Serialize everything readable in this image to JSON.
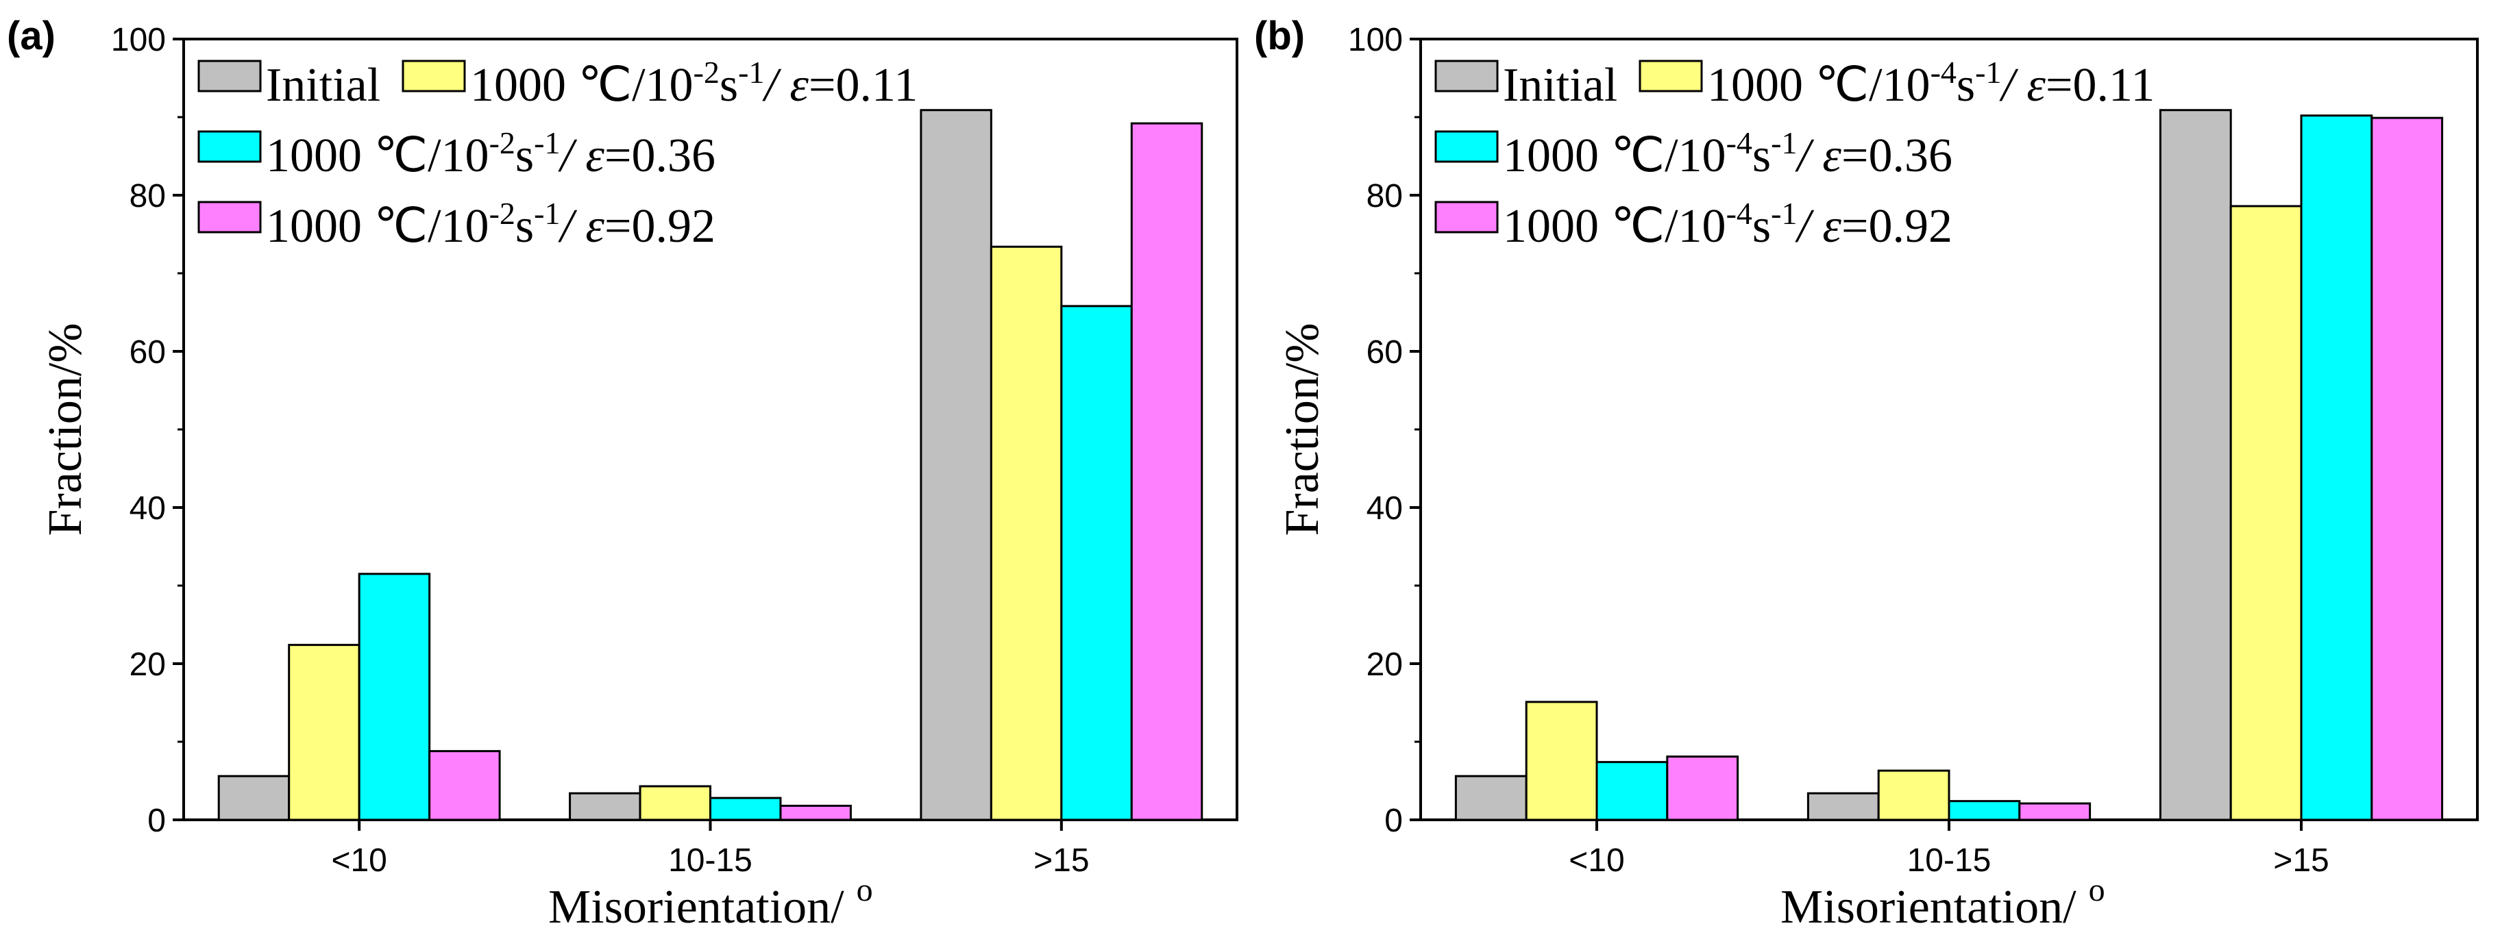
{
  "chart_data": [
    {
      "type": "bar",
      "panel_label": "(a)",
      "categories": [
        "<10",
        "10-15",
        ">15"
      ],
      "xlabel": "Misorientation/",
      "xlabel_unit": "o",
      "ylabel": "Fraction/%",
      "ylim": [
        0,
        100
      ],
      "yticks": [
        0,
        20,
        40,
        60,
        80,
        100
      ],
      "legend": "top-left",
      "series": [
        {
          "name": "Initial",
          "color": "#c0c0c0",
          "values": [
            5.6,
            3.4,
            90.9
          ],
          "legend_parts": {
            "pre": "Initial",
            "sup1": "",
            "mid": "",
            "sup2": "",
            "eps": "",
            "post": ""
          }
        },
        {
          "name": "1000 ℃/10-2s-1/ ε=0.11",
          "color": "#ffff80",
          "values": [
            22.4,
            4.3,
            73.4
          ],
          "legend_parts": {
            "pre": "1000 ℃/10",
            "sup1": "-2",
            "mid": "s",
            "sup2": "-1",
            "eps": "/ ε",
            "post": "=0.11"
          }
        },
        {
          "name": "1000 ℃/10-2s-1/ ε=0.36",
          "color": "#00ffff",
          "values": [
            31.5,
            2.8,
            65.8
          ],
          "legend_parts": {
            "pre": "1000 ℃/10",
            "sup1": "-2",
            "mid": "s",
            "sup2": "-1",
            "eps": "/ ε",
            "post": "=0.36"
          }
        },
        {
          "name": "1000 ℃/10-2s-1/ ε=0.92",
          "color": "#ff80ff",
          "values": [
            8.8,
            1.8,
            89.2
          ],
          "legend_parts": {
            "pre": "1000 ℃/10",
            "sup1": "-2",
            "mid": "s",
            "sup2": "-1",
            "eps": "/ ε",
            "post": "=0.92"
          }
        }
      ]
    },
    {
      "type": "bar",
      "panel_label": "(b)",
      "categories": [
        "<10",
        "10-15",
        ">15"
      ],
      "xlabel": "Misorientation/",
      "xlabel_unit": "o",
      "ylabel": "Fraction/%",
      "ylim": [
        0,
        100
      ],
      "yticks": [
        0,
        20,
        40,
        60,
        80,
        100
      ],
      "legend": "top-left",
      "series": [
        {
          "name": "Initial",
          "color": "#c0c0c0",
          "values": [
            5.6,
            3.4,
            90.9
          ],
          "legend_parts": {
            "pre": "Initial",
            "sup1": "",
            "mid": "",
            "sup2": "",
            "eps": "",
            "post": ""
          }
        },
        {
          "name": "1000 ℃/10-4s-1/ ε=0.11",
          "color": "#ffff80",
          "values": [
            15.1,
            6.3,
            78.6
          ],
          "legend_parts": {
            "pre": "1000 ℃/10",
            "sup1": "-4",
            "mid": "s",
            "sup2": "-1",
            "eps": "/ ε",
            "post": "=0.11"
          }
        },
        {
          "name": "1000 ℃/10-4s-1/ ε=0.36",
          "color": "#00ffff",
          "values": [
            7.4,
            2.4,
            90.2
          ],
          "legend_parts": {
            "pre": "1000 ℃/10",
            "sup1": "-4",
            "mid": "s",
            "sup2": "-1",
            "eps": "/ ε",
            "post": "=0.36"
          }
        },
        {
          "name": "1000 ℃/10-4s-1/ ε=0.92",
          "color": "#ff80ff",
          "values": [
            8.1,
            2.1,
            89.9
          ],
          "legend_parts": {
            "pre": "1000 ℃/10",
            "sup1": "-4",
            "mid": "s",
            "sup2": "-1",
            "eps": "/ ε",
            "post": "=0.92"
          }
        }
      ]
    }
  ]
}
